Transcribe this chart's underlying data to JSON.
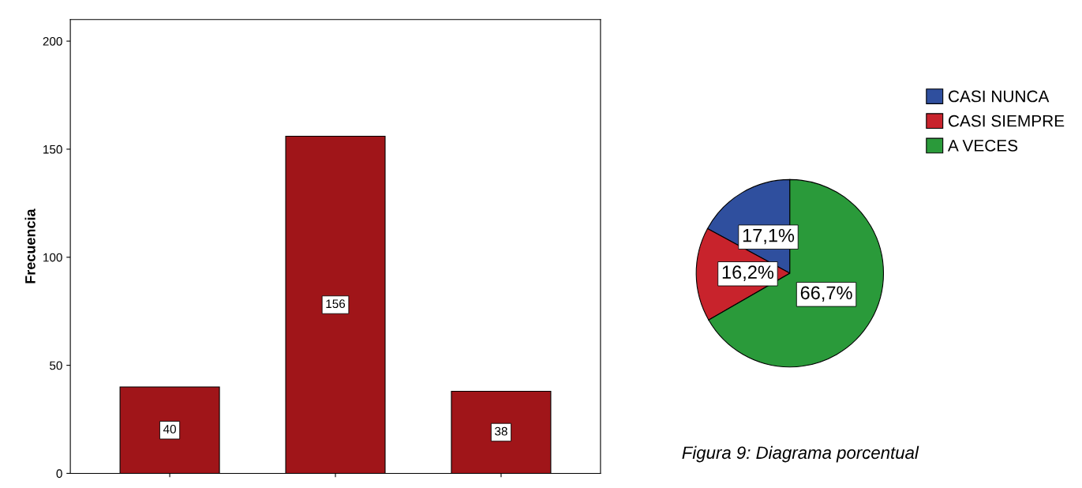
{
  "chart_data": [
    {
      "type": "bar",
      "ylabel": "Frecuencia",
      "categories": [
        null,
        null,
        null
      ],
      "values": [
        40,
        156,
        38
      ],
      "color": "#a01519",
      "ylim": [
        0,
        210
      ],
      "yticks": [
        0,
        50,
        100,
        150,
        200
      ],
      "data_labels": true,
      "grid": false
    },
    {
      "type": "pie",
      "categories": [
        "CASI NUNCA",
        "CASI SIEMPRE",
        "A VECES"
      ],
      "values": [
        17.1,
        16.2,
        66.7
      ],
      "colors": [
        "#2f4f9e",
        "#c8232c",
        "#2a9a3a"
      ],
      "value_labels": [
        "17,1%",
        "16,2%",
        "66,7%"
      ],
      "legend": "top right",
      "annotations": [
        "Figura 9: Diagrama porcentual"
      ]
    }
  ]
}
